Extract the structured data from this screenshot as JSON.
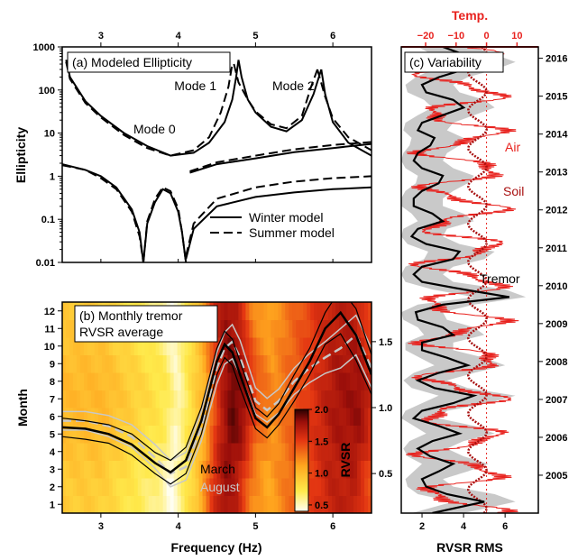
{
  "chart_data": [
    {
      "panel": "a",
      "type": "line",
      "title": "(a) Modeled Ellipticity",
      "ylabel": "Ellipticity",
      "xlim": [
        2.5,
        6.5
      ],
      "ylim": [
        0.01,
        1000
      ],
      "yscale": "log",
      "top_xticks": [
        "3",
        "4",
        "5",
        "6"
      ],
      "yticks": [
        "0.01",
        "0.1",
        "1",
        "10",
        "100",
        "1000"
      ],
      "mode_labels": [
        "Mode 0",
        "Mode 1",
        "Mode 2"
      ],
      "legend": {
        "position": "lower-right",
        "entries": [
          "Winter model",
          "Summer model"
        ]
      },
      "series": [
        {
          "name": "Winter model",
          "style": "solid",
          "curves": [
            {
              "x": [
                2.5,
                2.8,
                3.0,
                3.2,
                3.4,
                3.5,
                3.55
              ],
              "y": [
                1.9,
                1.4,
                1.0,
                0.55,
                0.17,
                0.05,
                0.01
              ]
            },
            {
              "x": [
                3.55,
                3.6,
                3.7,
                3.8,
                3.9,
                4.0,
                4.05,
                4.1
              ],
              "y": [
                0.01,
                0.08,
                0.25,
                0.5,
                0.4,
                0.15,
                0.05,
                0.01
              ]
            },
            {
              "x": [
                2.55,
                2.6,
                2.8,
                3.0,
                3.3,
                3.6,
                3.9,
                4.2,
                4.4,
                4.6,
                4.7,
                4.75,
                4.78
              ],
              "y": [
                500,
                200,
                55,
                25,
                10,
                5,
                3,
                3.5,
                6,
                18,
                60,
                200,
                500
              ]
            },
            {
              "x": [
                4.78,
                4.82,
                4.9,
                5.0,
                5.2,
                5.4,
                5.6,
                5.75,
                5.85
              ],
              "y": [
                500,
                200,
                60,
                30,
                14,
                11,
                20,
                80,
                300
              ]
            },
            {
              "x": [
                5.85,
                5.9,
                6.0,
                6.2,
                6.5
              ],
              "y": [
                300,
                80,
                18,
                6,
                3
              ]
            },
            {
              "x": [
                4.15,
                4.5,
                5.0,
                5.5,
                6.0,
                6.5
              ],
              "y": [
                1.2,
                1.9,
                2.6,
                3.6,
                4.5,
                5.6
              ]
            },
            {
              "x": [
                4.1,
                4.2,
                4.5,
                5.0,
                5.5,
                6.0,
                6.5
              ],
              "y": [
                0.012,
                0.06,
                0.2,
                0.33,
                0.42,
                0.5,
                0.55
              ]
            }
          ]
        },
        {
          "name": "Summer model",
          "style": "dashed",
          "curves": [
            {
              "x": [
                2.5,
                2.8,
                3.0,
                3.2,
                3.4,
                3.5,
                3.55
              ],
              "y": [
                1.8,
                1.4,
                0.9,
                0.5,
                0.15,
                0.04,
                0.01
              ]
            },
            {
              "x": [
                3.55,
                3.6,
                3.7,
                3.8,
                3.9,
                4.0,
                4.05,
                4.1
              ],
              "y": [
                0.01,
                0.09,
                0.3,
                0.55,
                0.45,
                0.18,
                0.05,
                0.01
              ]
            },
            {
              "x": [
                2.55,
                2.6,
                2.8,
                3.0,
                3.3,
                3.6,
                3.9,
                4.2,
                4.4,
                4.55,
                4.65,
                4.7
              ],
              "y": [
                450,
                180,
                50,
                23,
                9,
                4.5,
                3,
                4,
                8,
                30,
                120,
                400
              ]
            },
            {
              "x": [
                4.72,
                4.78,
                4.9,
                5.0,
                5.2,
                5.4,
                5.6,
                5.72,
                5.8
              ],
              "y": [
                400,
                150,
                60,
                32,
                16,
                13,
                25,
                120,
                300
              ]
            },
            {
              "x": [
                5.8,
                5.9,
                6.0,
                6.2,
                6.5
              ],
              "y": [
                300,
                70,
                22,
                8,
                4
              ]
            },
            {
              "x": [
                4.15,
                4.5,
                5.0,
                5.5,
                6.0,
                6.5
              ],
              "y": [
                1.3,
                2.1,
                3.0,
                4.2,
                5.3,
                6.2
              ]
            },
            {
              "x": [
                4.1,
                4.2,
                4.5,
                5.0,
                5.5,
                6.0,
                6.5
              ],
              "y": [
                0.014,
                0.08,
                0.3,
                0.55,
                0.75,
                0.9,
                1.0
              ]
            }
          ]
        }
      ]
    },
    {
      "panel": "b",
      "type": "heatmap",
      "title_lines": [
        "(b) Monthly tremor",
        "RVSR average"
      ],
      "xlabel": "Frequency (Hz)",
      "ylabel": "Month",
      "right_ylabel": "RVSR",
      "xlim": [
        2.5,
        6.5
      ],
      "ylim": [
        0.5,
        12.5
      ],
      "xticks": [
        "3",
        "4",
        "5",
        "6"
      ],
      "yticks": [
        "1",
        "2",
        "3",
        "4",
        "5",
        "6",
        "7",
        "8",
        "9",
        "10",
        "11",
        "12"
      ],
      "right_ylim": [
        0.2,
        1.8
      ],
      "right_yticks": [
        "0.5",
        "1.0",
        "1.5"
      ],
      "colorbar": {
        "min": 0.4,
        "max": 2.0,
        "ticks": [
          "0.5",
          "1.0",
          "1.5",
          "2.0"
        ]
      },
      "freq_profile": [
        {
          "f": 2.5,
          "v": 0.95
        },
        {
          "f": 3.0,
          "v": 0.95
        },
        {
          "f": 3.4,
          "v": 0.8
        },
        {
          "f": 3.8,
          "v": 0.65
        },
        {
          "f": 3.95,
          "v": 0.45
        },
        {
          "f": 4.1,
          "v": 0.7
        },
        {
          "f": 4.3,
          "v": 1.0
        },
        {
          "f": 4.5,
          "v": 1.6
        },
        {
          "f": 4.65,
          "v": 1.85
        },
        {
          "f": 4.8,
          "v": 1.75
        },
        {
          "f": 5.0,
          "v": 1.3
        },
        {
          "f": 5.2,
          "v": 1.15
        },
        {
          "f": 5.4,
          "v": 1.3
        },
        {
          "f": 5.7,
          "v": 1.5
        },
        {
          "f": 6.0,
          "v": 1.7
        },
        {
          "f": 6.3,
          "v": 1.75
        },
        {
          "f": 6.5,
          "v": 1.5
        }
      ],
      "labels": [
        "March",
        "August"
      ],
      "series": [
        {
          "name": "March",
          "style": "solid",
          "x": [
            2.5,
            2.8,
            3.1,
            3.4,
            3.7,
            3.9,
            4.1,
            4.3,
            4.5,
            4.6,
            4.7,
            4.8,
            5.0,
            5.15,
            5.3,
            5.5,
            5.7,
            5.9,
            6.1,
            6.3,
            6.5
          ],
          "y": [
            0.85,
            0.84,
            0.8,
            0.72,
            0.58,
            0.51,
            0.6,
            0.9,
            1.35,
            1.48,
            1.42,
            1.25,
            0.92,
            0.85,
            0.95,
            1.15,
            1.35,
            1.6,
            1.72,
            1.55,
            1.25
          ],
          "upper": [
            0.92,
            0.9,
            0.87,
            0.8,
            0.66,
            0.6,
            0.7,
            1.0,
            1.45,
            1.58,
            1.52,
            1.35,
            1.0,
            0.93,
            1.03,
            1.25,
            1.45,
            1.72,
            1.9,
            1.75,
            1.4
          ],
          "lower": [
            0.78,
            0.76,
            0.73,
            0.64,
            0.5,
            0.42,
            0.5,
            0.8,
            1.25,
            1.38,
            1.32,
            1.15,
            0.84,
            0.77,
            0.87,
            1.05,
            1.25,
            1.48,
            1.56,
            1.36,
            1.1
          ]
        },
        {
          "name": "August",
          "style": "dashed",
          "x": [
            2.5,
            2.8,
            3.1,
            3.4,
            3.7,
            3.9,
            4.1,
            4.3,
            4.5,
            4.6,
            4.7,
            4.8,
            5.0,
            5.15,
            5.3,
            5.5,
            5.7,
            5.9,
            6.1,
            6.3,
            6.5
          ],
          "y": [
            0.9,
            0.9,
            0.86,
            0.78,
            0.62,
            0.5,
            0.55,
            0.85,
            1.3,
            1.45,
            1.5,
            1.38,
            1.05,
            0.98,
            1.05,
            1.2,
            1.3,
            1.38,
            1.45,
            1.55,
            1.3
          ],
          "upper": [
            0.97,
            0.97,
            0.94,
            0.87,
            0.72,
            0.6,
            0.66,
            0.97,
            1.42,
            1.57,
            1.63,
            1.51,
            1.15,
            1.07,
            1.14,
            1.3,
            1.41,
            1.5,
            1.6,
            1.7,
            1.45
          ],
          "lower": [
            0.83,
            0.83,
            0.78,
            0.7,
            0.54,
            0.4,
            0.45,
            0.75,
            1.18,
            1.33,
            1.37,
            1.25,
            0.95,
            0.89,
            0.96,
            1.1,
            1.19,
            1.26,
            1.3,
            1.4,
            1.15
          ]
        }
      ]
    },
    {
      "panel": "c",
      "type": "line",
      "title": "(c) Variability",
      "xlabel": "RVSR RMS",
      "top_xlabel": "Temp.",
      "xlim": [
        1,
        7.6
      ],
      "xticks": [
        "2",
        "4",
        "6"
      ],
      "top_xlim": [
        -28,
        17
      ],
      "top_xticks": [
        "−20",
        "−10",
        "0",
        "10"
      ],
      "year_range": [
        2004.5,
        2016.8
      ],
      "year_ticks": [
        "2005",
        "2006",
        "2007",
        "2008",
        "2009",
        "2010",
        "2011",
        "2012",
        "2013",
        "2014",
        "2015",
        "2016"
      ],
      "labels": [
        "Air",
        "Soil",
        "Tremor"
      ],
      "tremor_band": {
        "t": [
          2004.5,
          2004.8,
          2005.0,
          2005.2,
          2005.4,
          2005.6,
          2005.8,
          2006.0,
          2006.2,
          2006.4,
          2006.6,
          2006.8,
          2007.0,
          2007.2,
          2007.4,
          2007.6,
          2007.8,
          2008.0,
          2008.2,
          2008.4,
          2008.6,
          2008.8,
          2009.0,
          2009.2,
          2009.4,
          2009.6,
          2009.8,
          2010.0,
          2010.2,
          2010.4,
          2010.6,
          2010.8,
          2011.0,
          2011.2,
          2011.4,
          2011.6,
          2011.8,
          2012.0,
          2012.2,
          2012.4,
          2012.6,
          2012.8,
          2013.0,
          2013.2,
          2013.4,
          2013.6,
          2013.8,
          2014.0,
          2014.2,
          2014.4,
          2014.6,
          2014.8,
          2015.0,
          2015.2,
          2015.4,
          2015.6,
          2015.8,
          2016.0,
          2016.2,
          2016.4,
          2016.6,
          2016.8
        ],
        "upper": [
          4.0,
          6.5,
          5.5,
          3.5,
          3.0,
          4.2,
          5.2,
          4.0,
          3.2,
          4.0,
          5.5,
          4.5,
          2.8,
          3.2,
          5.2,
          6.5,
          4.2,
          3.2,
          4.5,
          6.0,
          5.0,
          3.5,
          3.5,
          5.0,
          4.5,
          3.2,
          3.0,
          4.5,
          7.0,
          6.0,
          3.5,
          3.0,
          3.5,
          5.0,
          5.5,
          3.8,
          3.0,
          3.2,
          4.5,
          4.0,
          3.0,
          3.0,
          3.5,
          4.2,
          4.5,
          3.5,
          3.0,
          3.2,
          3.8,
          4.0,
          3.2,
          3.5,
          4.5,
          5.5,
          5.0,
          3.8,
          3.5,
          4.2,
          5.5,
          6.5,
          5.5,
          4.5
        ],
        "center": [
          2.5,
          5.0,
          3.2,
          2.2,
          2.0,
          2.8,
          3.5,
          2.4,
          1.8,
          2.5,
          3.8,
          2.8,
          1.6,
          2.0,
          3.5,
          4.5,
          2.6,
          1.8,
          2.8,
          4.2,
          3.2,
          2.0,
          2.0,
          3.5,
          3.0,
          1.8,
          1.7,
          3.0,
          6.2,
          4.0,
          2.0,
          1.6,
          2.0,
          3.5,
          3.8,
          2.2,
          1.5,
          1.8,
          3.0,
          2.5,
          1.6,
          1.6,
          2.0,
          2.8,
          3.0,
          2.0,
          1.6,
          1.8,
          2.4,
          2.6,
          1.8,
          2.0,
          3.0,
          4.0,
          3.5,
          2.2,
          2.0,
          2.8,
          4.0,
          5.0,
          4.0,
          3.0
        ],
        "lower": [
          1.5,
          3.5,
          1.8,
          1.3,
          1.2,
          1.6,
          2.0,
          1.3,
          1.1,
          1.4,
          2.2,
          1.6,
          1.0,
          1.2,
          2.0,
          2.8,
          1.5,
          1.1,
          1.6,
          2.6,
          1.9,
          1.2,
          1.2,
          2.1,
          1.8,
          1.1,
          1.0,
          1.8,
          4.5,
          2.5,
          1.2,
          1.0,
          1.2,
          2.1,
          2.3,
          1.3,
          1.0,
          1.1,
          1.8,
          1.5,
          1.0,
          1.0,
          1.2,
          1.7,
          1.8,
          1.2,
          1.0,
          1.1,
          1.4,
          1.5,
          1.1,
          1.2,
          1.8,
          2.5,
          2.1,
          1.3,
          1.2,
          1.7,
          2.5,
          3.2,
          2.5,
          1.8
        ]
      },
      "temperature_model": {
        "air_mean_c": -8,
        "air_amplitude_c": 12,
        "soil_mean_c": -3,
        "soil_amplitude_c": 3,
        "peak_month": 7
      }
    }
  ]
}
